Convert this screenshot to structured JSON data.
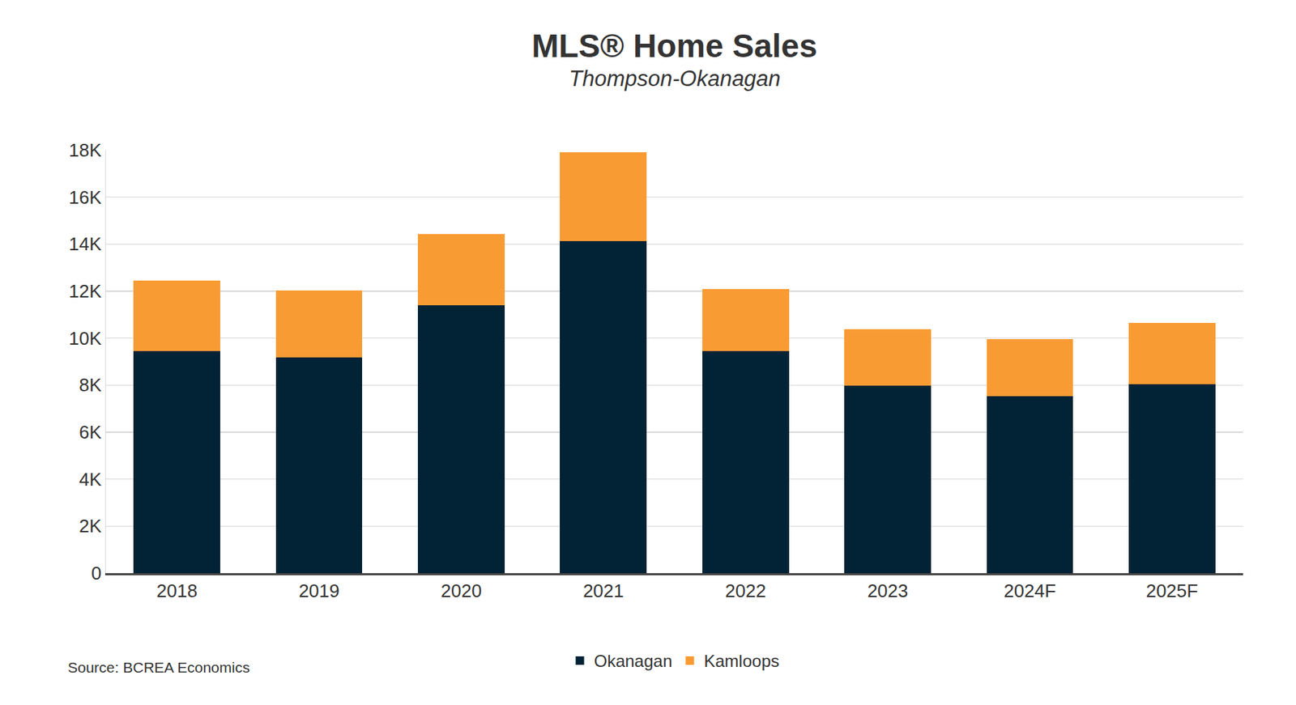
{
  "chart_data": {
    "type": "bar",
    "title": "MLS® Home Sales",
    "subtitle": "Thompson-Okanagan",
    "source": "Source: BCREA Economics",
    "categories": [
      "2018",
      "2019",
      "2020",
      "2021",
      "2022",
      "2023",
      "2024F",
      "2025F"
    ],
    "series": [
      {
        "name": "Okanagan",
        "color": "#022335",
        "values": [
          9460,
          9180,
          11390,
          14130,
          9460,
          7980,
          7520,
          8050
        ]
      },
      {
        "name": "Kamloops",
        "color": "#f99b33",
        "values": [
          2990,
          2850,
          3030,
          3770,
          2640,
          2390,
          2430,
          2600
        ]
      }
    ],
    "stacked": true,
    "ylim": [
      0,
      18000
    ],
    "yticks": [
      0,
      {
        "value": 2000,
        "label": "2K"
      },
      {
        "value": 4000,
        "label": "4K"
      },
      {
        "value": 6000,
        "label": "6K"
      },
      {
        "value": 8000,
        "label": "8K"
      },
      {
        "value": 10000,
        "label": "10K"
      },
      {
        "value": 12000,
        "label": "12K"
      },
      {
        "value": 14000,
        "label": "14K"
      },
      {
        "value": 16000,
        "label": "16K"
      },
      {
        "value": 18000,
        "label": "18K"
      }
    ],
    "grid": true,
    "legend": "bottom"
  }
}
